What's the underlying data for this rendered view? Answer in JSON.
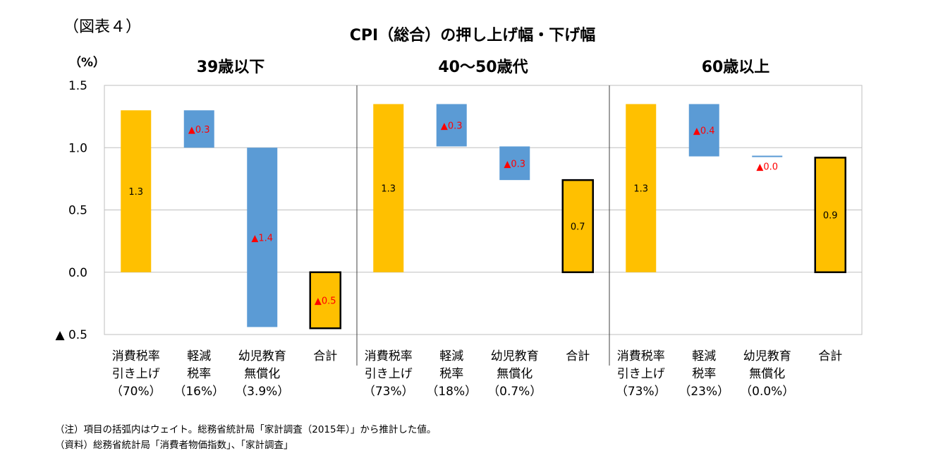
{
  "figure_label": "（図表４）",
  "chart_data": {
    "type": "bar",
    "subtype": "waterfall",
    "title": "CPI（総合）の押し上げ幅・下げ幅",
    "ylabel": "（%）",
    "ylim": [
      -0.5,
      1.5
    ],
    "yticks": [
      {
        "value": 1.5,
        "label": "1.5"
      },
      {
        "value": 1.0,
        "label": "1.0"
      },
      {
        "value": 0.5,
        "label": "0.5"
      },
      {
        "value": 0.0,
        "label": "0.0"
      },
      {
        "value": -0.5,
        "label": "▲ 0.5"
      }
    ],
    "grid": true,
    "colors": {
      "increase": "#FFC000",
      "decrease": "#5B9BD5",
      "total": "#FFC000",
      "negative_label": "#FF0000",
      "total_border": "#000000"
    },
    "panels": [
      {
        "title": "39歳以下",
        "bars": [
          {
            "category": [
              "消費税率",
              "引き上げ",
              "（70%）"
            ],
            "kind": "increase",
            "base": 0,
            "top": 1.3,
            "label": "1.3"
          },
          {
            "category": [
              "軽減",
              "税率",
              "（16%）"
            ],
            "kind": "decrease",
            "base": 1.0,
            "top": 1.3,
            "label": "▲0.3"
          },
          {
            "category": [
              "幼児教育",
              "無償化",
              "（3.9%）"
            ],
            "kind": "decrease",
            "base": -0.44,
            "top": 1.0,
            "label": "▲1.4"
          },
          {
            "category": [
              "合計"
            ],
            "kind": "total",
            "base": -0.45,
            "top": 0,
            "label": "▲0.5"
          }
        ]
      },
      {
        "title": "40～50歳代",
        "bars": [
          {
            "category": [
              "消費税率",
              "引き上げ",
              "（73%）"
            ],
            "kind": "increase",
            "base": 0,
            "top": 1.35,
            "label": "1.3"
          },
          {
            "category": [
              "軽減",
              "税率",
              "（18%）"
            ],
            "kind": "decrease",
            "base": 1.01,
            "top": 1.35,
            "label": "▲0.3"
          },
          {
            "category": [
              "幼児教育",
              "無償化",
              "（0.7%）"
            ],
            "kind": "decrease",
            "base": 0.74,
            "top": 1.01,
            "label": "▲0.3"
          },
          {
            "category": [
              "合計"
            ],
            "kind": "total",
            "base": 0,
            "top": 0.74,
            "label": "0.7"
          }
        ]
      },
      {
        "title": "60歳以上",
        "bars": [
          {
            "category": [
              "消費税率",
              "引き上げ",
              "（73%）"
            ],
            "kind": "increase",
            "base": 0,
            "top": 1.35,
            "label": "1.3"
          },
          {
            "category": [
              "軽減",
              "税率",
              "（23%）"
            ],
            "kind": "decrease",
            "base": 0.93,
            "top": 1.35,
            "label": "▲0.4"
          },
          {
            "category": [
              "幼児教育",
              "無償化",
              "（0.0%）"
            ],
            "kind": "decrease",
            "base": 0.92,
            "top": 0.93,
            "label": "▲0.0"
          },
          {
            "category": [
              "合計"
            ],
            "kind": "total",
            "base": 0,
            "top": 0.92,
            "label": "0.9"
          }
        ]
      }
    ]
  },
  "notes": [
    "（注）項目の括弧内はウェイト。総務省統計局「家計調査（2015年）」から推計した値。",
    "（資料）総務省統計局「消費者物価指数」、「家計調査」"
  ]
}
